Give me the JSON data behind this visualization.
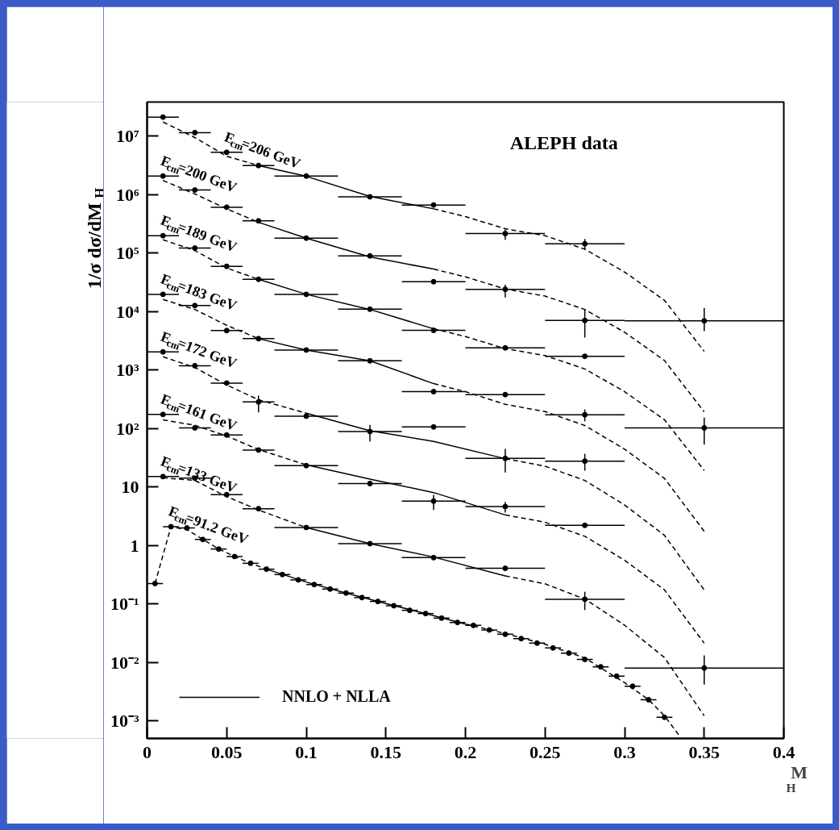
{
  "chart_data": {
    "type": "scatter",
    "xlabel": "M$_{H}$",
    "ylabel": "1/σ dσ/dM$_{H}$",
    "log": "y",
    "legend": "bottom left",
    "xlim": [
      0,
      0.4
    ],
    "xticks": [
      0,
      0.05,
      0.1,
      0.15,
      0.2,
      0.25,
      0.3,
      0.35,
      0.4
    ],
    "ylim": [
      0.0005,
      38000000
    ],
    "yticks": [
      {
        "value": 0.001,
        "label": "10⁻³"
      },
      {
        "value": 0.01,
        "label": "10⁻²"
      },
      {
        "value": 0.1,
        "label": "10⁻¹"
      },
      1,
      10,
      {
        "value": 100,
        "label": "10²"
      },
      {
        "value": 1000,
        "label": "10³"
      },
      {
        "value": 10000,
        "label": "10⁴"
      },
      {
        "value": 100000,
        "label": "10⁵"
      },
      {
        "value": 1000000,
        "label": "10⁶"
      },
      {
        "value": 10000000,
        "label": "10⁷"
      }
    ],
    "annotations": [
      "ALEPH data"
    ],
    "series": [
      {
        "name": "E$_{cm}$=206 GeV",
        "marker": "circle",
        "color": "#000000",
        "x": [
          0.01,
          0.03,
          0.05,
          0.07,
          0.1,
          0.14,
          0.18,
          0.225,
          0.275,
          0.35
        ],
        "values": [
          21000000,
          11400000,
          5250000,
          3120000,
          2060000,
          910000,
          660000,
          214000,
          143000,
          6900
        ],
        "xerrors": [
          0.01,
          0.01,
          0.01,
          0.01,
          0.02,
          0.02,
          0.02,
          0.025,
          0.025,
          0.05
        ],
        "errors": [
          null,
          null,
          null,
          null,
          null,
          null,
          null,
          [
            168000,
            254000
          ],
          [
            114000,
            173000
          ],
          [
            4600,
            11500
          ]
        ]
      },
      {
        "type": "line",
        "line_style": "dashed",
        "color": "#000000",
        "x": [
          0.01,
          0.03,
          0.05,
          0.07
        ],
        "values": [
          17300000,
          9400000,
          4500000,
          3120000
        ]
      },
      {
        "type": "line",
        "line_style": "solid",
        "name": "NNLO + NLLA",
        "color": "#000000",
        "x": [
          0.07,
          0.1,
          0.14,
          0.18
        ],
        "values": [
          3120000,
          2040000,
          925000,
          568000
        ]
      },
      {
        "type": "line",
        "line_style": "dashed",
        "color": "#000000",
        "x": [
          0.18,
          0.2,
          0.225,
          0.25,
          0.275,
          0.3,
          0.325,
          0.35
        ],
        "values": [
          568000,
          418000,
          259000,
          197000,
          116000,
          47100,
          15500,
          2080
        ]
      },
      {
        "name": "E$_{cm}$=200 GeV",
        "marker": "circle",
        "color": "#000000",
        "x": [
          0.01,
          0.03,
          0.05,
          0.07,
          0.1,
          0.14,
          0.18,
          0.225,
          0.275,
          0.35
        ],
        "values": [
          2060000,
          1190000,
          605000,
          353000,
          179000,
          89000,
          32200,
          23900,
          7000,
          102
        ],
        "xerrors": [
          0.01,
          0.01,
          0.01,
          0.01,
          0.02,
          0.02,
          0.02,
          0.025,
          0.025,
          0.05
        ],
        "errors": [
          null,
          null,
          null,
          null,
          null,
          null,
          null,
          [
            17300,
            28700
          ],
          [
            3560,
            10700
          ],
          [
            52.6,
            153
          ]
        ]
      },
      {
        "type": "line",
        "line_style": "dashed",
        "color": "#000000",
        "x": [
          0.01,
          0.03,
          0.05,
          0.07
        ],
        "values": [
          1730000,
          1020000,
          568000,
          334000
        ]
      },
      {
        "type": "line",
        "line_style": "solid",
        "color": "#000000",
        "x": [
          0.07,
          0.1,
          0.14,
          0.18
        ],
        "values": [
          334000,
          179000,
          85300,
          53000
        ]
      },
      {
        "type": "line",
        "line_style": "dashed",
        "color": "#000000",
        "x": [
          0.18,
          0.2,
          0.225,
          0.25,
          0.275,
          0.3,
          0.325,
          0.35
        ],
        "values": [
          53000,
          38900,
          24200,
          18300,
          10800,
          4400,
          1450,
          192
        ]
      },
      {
        "name": "E$_{cm}$=189 GeV",
        "marker": "circle",
        "color": "#000000",
        "x": [
          0.01,
          0.03,
          0.05,
          0.07,
          0.1,
          0.14,
          0.18,
          0.225,
          0.275
        ],
        "values": [
          197000,
          121000,
          59000,
          35400,
          19600,
          10900,
          4740,
          2380,
          1710
        ],
        "xerrors": [
          0.01,
          0.01,
          0.01,
          0.01,
          0.02,
          0.02,
          0.02,
          0.025,
          0.025
        ]
      },
      {
        "type": "line",
        "line_style": "dashed",
        "color": "#000000",
        "x": [
          0.01,
          0.03,
          0.05,
          0.07
        ],
        "values": [
          168000,
          110000,
          55200,
          35400
        ]
      },
      {
        "type": "line",
        "line_style": "solid",
        "color": "#000000",
        "x": [
          0.07,
          0.1,
          0.14,
          0.18
        ],
        "values": [
          35400,
          19600,
          10800,
          5050
        ]
      },
      {
        "type": "line",
        "line_style": "dashed",
        "color": "#000000",
        "x": [
          0.18,
          0.2,
          0.225,
          0.25,
          0.275,
          0.3,
          0.325,
          0.35
        ],
        "values": [
          5050,
          3720,
          2310,
          1760,
          1040,
          425,
          141,
          19.1
        ]
      },
      {
        "name": "E$_{cm}$=183 GeV",
        "marker": "circle",
        "color": "#000000",
        "x": [
          0.01,
          0.03,
          0.05,
          0.07,
          0.1,
          0.14,
          0.18,
          0.225,
          0.275
        ],
        "values": [
          19600,
          12600,
          4700,
          3420,
          2190,
          1430,
          425,
          378,
          171
        ],
        "xerrors": [
          0.01,
          0.01,
          0.01,
          0.01,
          0.02,
          0.02,
          0.02,
          0.025,
          0.025
        ],
        "errors": [
          null,
          null,
          null,
          null,
          null,
          null,
          null,
          null,
          [
            132,
            211
          ]
        ]
      },
      {
        "type": "line",
        "line_style": "dashed",
        "color": "#000000",
        "x": [
          0.01,
          0.03,
          0.05,
          0.07
        ],
        "values": [
          16000,
          10800,
          5790,
          3420
        ]
      },
      {
        "type": "line",
        "line_style": "solid",
        "color": "#000000",
        "x": [
          0.07,
          0.1,
          0.14,
          0.18
        ],
        "values": [
          3420,
          2190,
          1430,
          583
        ]
      },
      {
        "type": "line",
        "line_style": "dashed",
        "color": "#000000",
        "x": [
          0.18,
          0.2,
          0.225,
          0.25,
          0.275,
          0.3,
          0.325,
          0.35
        ],
        "values": [
          583,
          425,
          258,
          194,
          112,
          44.2,
          14.0,
          1.74
        ]
      },
      {
        "name": "E$_{cm}$=172 GeV",
        "marker": "circle",
        "color": "#000000",
        "x": [
          0.01,
          0.03,
          0.05,
          0.07,
          0.1,
          0.14,
          0.18,
          0.225,
          0.275
        ],
        "values": [
          2030,
          1180,
          596,
          283,
          162,
          88.7,
          106,
          30.7,
          27.6
        ],
        "xerrors": [
          0.01,
          0.01,
          0.01,
          0.01,
          0.02,
          0.02,
          0.02,
          0.025,
          0.025
        ],
        "errors": [
          null,
          null,
          null,
          [
            188,
            362
          ],
          null,
          [
            59.8,
            115
          ],
          null,
          [
            17.7,
            44.5
          ],
          [
            18.9,
            36.8
          ]
        ]
      },
      {
        "type": "line",
        "line_style": "dashed",
        "color": "#000000",
        "x": [
          0.01,
          0.03,
          0.05,
          0.07,
          0.1
        ],
        "values": [
          1680,
          1100,
          552,
          309,
          182
        ]
      },
      {
        "type": "line",
        "line_style": "solid",
        "color": "#000000",
        "x": [
          0.1,
          0.14,
          0.18,
          0.225
        ],
        "values": [
          182,
          91.5,
          59.8,
          30.4
        ]
      },
      {
        "type": "line",
        "line_style": "dashed",
        "color": "#000000",
        "x": [
          0.225,
          0.25,
          0.275,
          0.3,
          0.325,
          0.35
        ],
        "values": [
          30.4,
          22.6,
          12.9,
          4.9,
          1.49,
          0.173
        ]
      },
      {
        "name": "E$_{cm}$=161 GeV",
        "marker": "circle",
        "color": "#000000",
        "x": [
          0.01,
          0.03,
          0.05,
          0.07,
          0.1,
          0.14,
          0.18,
          0.225,
          0.275,
          0.35
        ],
        "values": [
          173,
          102,
          77,
          42.7,
          23.1,
          11.4,
          5.7,
          4.6,
          2.2,
          0.008
        ],
        "xerrors": [
          0.01,
          0.01,
          0.01,
          0.01,
          0.02,
          0.02,
          0.02,
          0.025,
          0.025,
          0.05
        ],
        "errors": [
          null,
          null,
          null,
          null,
          null,
          null,
          [
            4.02,
            7.28
          ],
          [
            3.62,
            5.52
          ],
          null,
          [
            0.00418,
            0.0132
          ]
        ]
      },
      {
        "type": "line",
        "line_style": "dashed",
        "color": "#000000",
        "x": [
          0.01,
          0.03,
          0.05,
          0.07,
          0.1
        ],
        "values": [
          140,
          113,
          74.0,
          43.5,
          23.8
        ]
      },
      {
        "type": "line",
        "line_style": "solid",
        "color": "#000000",
        "x": [
          0.1,
          0.14,
          0.18,
          0.225
        ],
        "values": [
          23.8,
          13.6,
          8.0,
          3.32
        ]
      },
      {
        "type": "line",
        "line_style": "dashed",
        "color": "#000000",
        "x": [
          0.225,
          0.25,
          0.275,
          0.3,
          0.325,
          0.35
        ],
        "values": [
          3.32,
          2.49,
          1.43,
          0.557,
          0.174,
          0.0213
        ]
      },
      {
        "name": "E$_{cm}$=133 GeV",
        "marker": "circle",
        "color": "#000000",
        "x": [
          0.01,
          0.03,
          0.05,
          0.07,
          0.1,
          0.14,
          0.18,
          0.225,
          0.275
        ],
        "values": [
          15.0,
          14.1,
          7.35,
          4.24,
          2.02,
          1.07,
          0.617,
          0.405,
          0.12
        ],
        "xerrors": [
          0.01,
          0.01,
          0.01,
          0.01,
          0.02,
          0.02,
          0.02,
          0.025,
          0.025
        ],
        "errors": [
          null,
          null,
          null,
          null,
          null,
          null,
          null,
          null,
          [
            0.0783,
            0.161
          ]
        ]
      },
      {
        "type": "line",
        "line_style": "dashed",
        "color": "#000000",
        "x": [
          0.01,
          0.03,
          0.05,
          0.07,
          0.1
        ],
        "values": [
          14.3,
          12.9,
          6.83,
          4.02,
          2.02
        ]
      },
      {
        "type": "line",
        "line_style": "solid",
        "color": "#000000",
        "x": [
          0.1,
          0.14,
          0.18,
          0.225
        ],
        "values": [
          2.02,
          1.07,
          0.631,
          0.301
        ]
      },
      {
        "type": "line",
        "line_style": "dashed",
        "color": "#000000",
        "x": [
          0.225,
          0.25,
          0.275,
          0.3,
          0.325,
          0.35
        ],
        "values": [
          0.301,
          0.22,
          0.121,
          0.0431,
          0.0121,
          0.00122
        ]
      },
      {
        "name": "E$_{cm}$=91.2 GeV",
        "marker": "circle",
        "color": "#000000",
        "x": [
          0.005,
          0.015,
          0.025,
          0.035,
          0.045,
          0.055,
          0.065,
          0.075,
          0.085,
          0.095,
          0.105,
          0.115,
          0.125,
          0.135,
          0.145,
          0.155,
          0.165,
          0.175,
          0.185,
          0.195,
          0.205,
          0.215,
          0.225,
          0.235,
          0.245,
          0.255,
          0.265,
          0.275,
          0.285,
          0.295,
          0.305,
          0.315,
          0.325
        ],
        "values": [
          0.223,
          2.09,
          1.98,
          1.26,
          0.867,
          0.645,
          0.494,
          0.392,
          0.317,
          0.257,
          0.214,
          0.179,
          0.153,
          0.128,
          0.11,
          0.0929,
          0.0776,
          0.0683,
          0.057,
          0.0482,
          0.0428,
          0.0358,
          0.0302,
          0.0255,
          0.0213,
          0.0176,
          0.0144,
          0.0112,
          0.0084,
          0.0058,
          0.0039,
          0.0023,
          0.00115
        ],
        "xerrors": [
          0.005,
          0.005,
          0.005,
          0.005,
          0.005,
          0.005,
          0.005,
          0.005,
          0.005,
          0.005,
          0.005,
          0.005,
          0.005,
          0.005,
          0.005,
          0.005,
          0.005,
          0.005,
          0.005,
          0.005,
          0.005,
          0.005,
          0.005,
          0.005,
          0.005,
          0.005,
          0.005,
          0.005,
          0.005,
          0.005,
          0.005,
          0.005,
          0.005
        ]
      },
      {
        "type": "line",
        "line_style": "dashed",
        "color": "#000000",
        "x": [
          0.005,
          0.015,
          0.025,
          0.035,
          0.045,
          0.055,
          0.065,
          0.075
        ],
        "values": [
          0.223,
          2.09,
          1.86,
          1.27,
          0.867,
          0.645,
          0.494,
          0.392
        ]
      },
      {
        "type": "line",
        "line_style": "solid",
        "color": "#000000",
        "x": [
          0.075,
          0.1,
          0.125,
          0.15,
          0.175,
          0.2
        ],
        "values": [
          0.392,
          0.236,
          0.153,
          0.101,
          0.0683,
          0.0452
        ]
      },
      {
        "type": "line",
        "line_style": "dashed",
        "color": "#000000",
        "x": [
          0.2,
          0.225,
          0.25,
          0.275,
          0.3,
          0.315,
          0.325,
          0.335
        ],
        "values": [
          0.0452,
          0.0312,
          0.0204,
          0.0119,
          0.00449,
          0.00231,
          0.00122,
          0.00053
        ]
      }
    ]
  }
}
